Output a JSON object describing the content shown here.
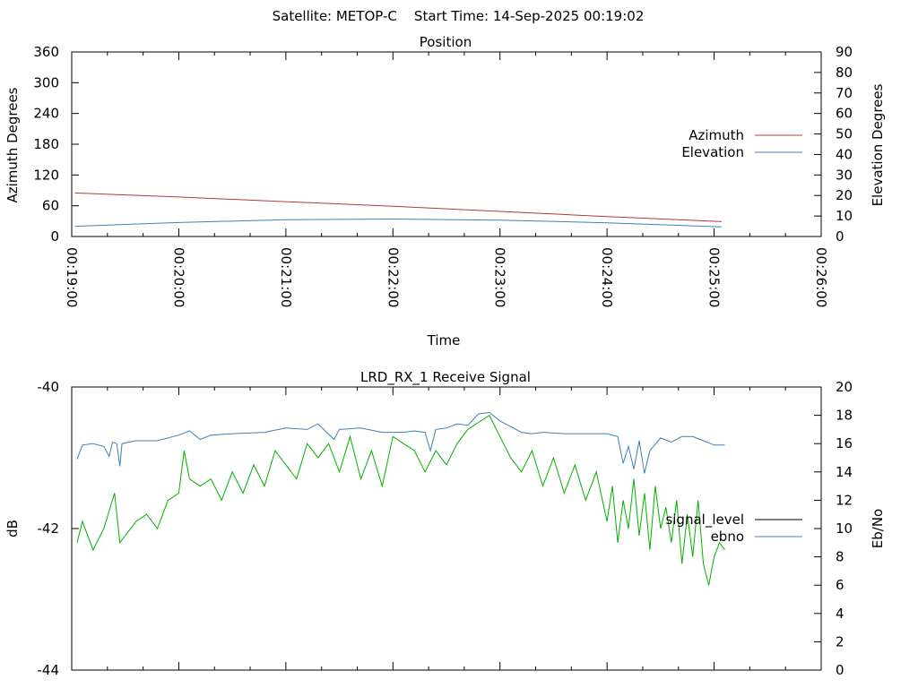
{
  "header": {
    "title": "Satellite: METOP-C    Start Time: 14-Sep-2025 00:19:02"
  },
  "chart_data": [
    {
      "type": "line",
      "title": "Position",
      "xlabel": "Time",
      "ylabel_left": "Azimuth Degrees",
      "ylabel_right": "Elevation Degrees",
      "x_ticks": [
        "00:19:00",
        "00:20:00",
        "00:21:00",
        "00:22:00",
        "00:23:00",
        "00:24:00",
        "00:25:00",
        "00:26:00"
      ],
      "xlim_minutes": [
        0,
        7
      ],
      "y_left": {
        "lim": [
          0,
          360
        ],
        "ticks": [
          0,
          60,
          120,
          180,
          240,
          300,
          360
        ]
      },
      "y_right": {
        "lim": [
          0,
          90
        ],
        "ticks": [
          0,
          10,
          20,
          30,
          40,
          50,
          60,
          70,
          80,
          90
        ]
      },
      "legend_position": "right",
      "series": [
        {
          "name": "Azimuth",
          "axis": "left",
          "color": "#b03b3b",
          "points": [
            [
              0.03,
              85
            ],
            [
              1.0,
              77
            ],
            [
              2.0,
              68
            ],
            [
              3.0,
              59
            ],
            [
              4.0,
              49
            ],
            [
              5.0,
              39
            ],
            [
              6.07,
              29
            ]
          ]
        },
        {
          "name": "Elevation",
          "axis": "right",
          "color": "#3f7fb7",
          "points": [
            [
              0.03,
              5
            ],
            [
              1.0,
              6.8
            ],
            [
              2.0,
              8.2
            ],
            [
              3.0,
              8.5
            ],
            [
              4.0,
              8.0
            ],
            [
              5.0,
              6.7
            ],
            [
              6.07,
              4.7
            ]
          ]
        }
      ]
    },
    {
      "type": "line",
      "title": "LRD_RX_1 Receive Signal",
      "ylabel_left": "dB",
      "ylabel_right": "Eb/No",
      "xlim_minutes": [
        0,
        7
      ],
      "y_left": {
        "lim": [
          -44,
          -40
        ],
        "ticks": [
          -40,
          -42,
          -44
        ]
      },
      "y_right": {
        "lim": [
          0,
          20
        ],
        "ticks": [
          0,
          2,
          4,
          6,
          8,
          10,
          12,
          14,
          16,
          18,
          20
        ]
      },
      "legend_position": "right",
      "series": [
        {
          "name": "signal_level",
          "axis": "left",
          "color": "#000000",
          "points": []
        },
        {
          "name": "ebno",
          "axis": "right",
          "color": "#3f7fb7",
          "points": [
            [
              0.05,
              14.9
            ],
            [
              0.1,
              15.9
            ],
            [
              0.2,
              16.0
            ],
            [
              0.3,
              15.8
            ],
            [
              0.35,
              15.1
            ],
            [
              0.38,
              16.1
            ],
            [
              0.42,
              16.0
            ],
            [
              0.45,
              14.4
            ],
            [
              0.47,
              16.0
            ],
            [
              0.6,
              16.2
            ],
            [
              0.8,
              16.2
            ],
            [
              1.0,
              16.6
            ],
            [
              1.1,
              16.9
            ],
            [
              1.2,
              16.3
            ],
            [
              1.3,
              16.6
            ],
            [
              1.5,
              16.7
            ],
            [
              1.8,
              16.8
            ],
            [
              2.0,
              17.1
            ],
            [
              2.2,
              17.0
            ],
            [
              2.3,
              17.4
            ],
            [
              2.45,
              16.3
            ],
            [
              2.5,
              17.0
            ],
            [
              2.7,
              17.1
            ],
            [
              2.9,
              16.8
            ],
            [
              3.1,
              16.8
            ],
            [
              3.2,
              16.9
            ],
            [
              3.3,
              16.8
            ],
            [
              3.35,
              15.5
            ],
            [
              3.4,
              17.0
            ],
            [
              3.5,
              17.1
            ],
            [
              3.6,
              17.4
            ],
            [
              3.7,
              17.3
            ],
            [
              3.8,
              18.1
            ],
            [
              3.9,
              18.2
            ],
            [
              4.0,
              17.6
            ],
            [
              4.1,
              17.2
            ],
            [
              4.2,
              16.8
            ],
            [
              4.3,
              16.7
            ],
            [
              4.4,
              16.8
            ],
            [
              4.6,
              16.7
            ],
            [
              4.8,
              16.7
            ],
            [
              5.0,
              16.7
            ],
            [
              5.1,
              16.5
            ],
            [
              5.15,
              14.6
            ],
            [
              5.2,
              15.8
            ],
            [
              5.25,
              14.2
            ],
            [
              5.3,
              16.2
            ],
            [
              5.35,
              13.9
            ],
            [
              5.4,
              15.5
            ],
            [
              5.5,
              16.4
            ],
            [
              5.6,
              16.1
            ],
            [
              5.7,
              16.5
            ],
            [
              5.8,
              16.5
            ],
            [
              5.9,
              16.2
            ],
            [
              6.0,
              15.9
            ],
            [
              6.1,
              15.9
            ]
          ]
        },
        {
          "name": "",
          "axis": "left",
          "color": "#00b000",
          "points": [
            [
              0.05,
              -42.2
            ],
            [
              0.1,
              -41.9
            ],
            [
              0.15,
              -42.1
            ],
            [
              0.2,
              -42.3
            ],
            [
              0.3,
              -42.0
            ],
            [
              0.4,
              -41.5
            ],
            [
              0.45,
              -42.2
            ],
            [
              0.5,
              -42.1
            ],
            [
              0.6,
              -41.9
            ],
            [
              0.7,
              -41.8
            ],
            [
              0.8,
              -42.0
            ],
            [
              0.9,
              -41.6
            ],
            [
              1.0,
              -41.5
            ],
            [
              1.05,
              -40.9
            ],
            [
              1.1,
              -41.3
            ],
            [
              1.2,
              -41.4
            ],
            [
              1.3,
              -41.3
            ],
            [
              1.4,
              -41.6
            ],
            [
              1.5,
              -41.2
            ],
            [
              1.6,
              -41.5
            ],
            [
              1.7,
              -41.1
            ],
            [
              1.8,
              -41.4
            ],
            [
              1.9,
              -40.9
            ],
            [
              2.0,
              -41.1
            ],
            [
              2.1,
              -41.3
            ],
            [
              2.2,
              -40.8
            ],
            [
              2.3,
              -41.0
            ],
            [
              2.4,
              -40.8
            ],
            [
              2.5,
              -41.2
            ],
            [
              2.6,
              -40.7
            ],
            [
              2.7,
              -41.3
            ],
            [
              2.8,
              -40.9
            ],
            [
              2.9,
              -41.4
            ],
            [
              3.0,
              -40.7
            ],
            [
              3.1,
              -40.8
            ],
            [
              3.2,
              -40.9
            ],
            [
              3.3,
              -41.2
            ],
            [
              3.4,
              -40.9
            ],
            [
              3.5,
              -41.1
            ],
            [
              3.6,
              -40.8
            ],
            [
              3.7,
              -40.6
            ],
            [
              3.8,
              -40.5
            ],
            [
              3.9,
              -40.4
            ],
            [
              4.0,
              -40.7
            ],
            [
              4.1,
              -41.0
            ],
            [
              4.2,
              -41.2
            ],
            [
              4.3,
              -40.9
            ],
            [
              4.4,
              -41.4
            ],
            [
              4.5,
              -41.0
            ],
            [
              4.6,
              -41.5
            ],
            [
              4.7,
              -41.1
            ],
            [
              4.8,
              -41.6
            ],
            [
              4.9,
              -41.2
            ],
            [
              5.0,
              -41.9
            ],
            [
              5.05,
              -41.4
            ],
            [
              5.1,
              -42.2
            ],
            [
              5.15,
              -41.6
            ],
            [
              5.2,
              -42.0
            ],
            [
              5.25,
              -41.3
            ],
            [
              5.3,
              -42.1
            ],
            [
              5.35,
              -41.5
            ],
            [
              5.4,
              -42.3
            ],
            [
              5.45,
              -41.4
            ],
            [
              5.5,
              -42.0
            ],
            [
              5.55,
              -41.7
            ],
            [
              5.6,
              -42.2
            ],
            [
              5.65,
              -41.6
            ],
            [
              5.7,
              -42.5
            ],
            [
              5.75,
              -41.8
            ],
            [
              5.8,
              -42.4
            ],
            [
              5.85,
              -41.6
            ],
            [
              5.9,
              -42.5
            ],
            [
              5.95,
              -42.8
            ],
            [
              6.0,
              -42.4
            ],
            [
              6.05,
              -42.2
            ],
            [
              6.1,
              -42.3
            ]
          ]
        }
      ]
    }
  ]
}
